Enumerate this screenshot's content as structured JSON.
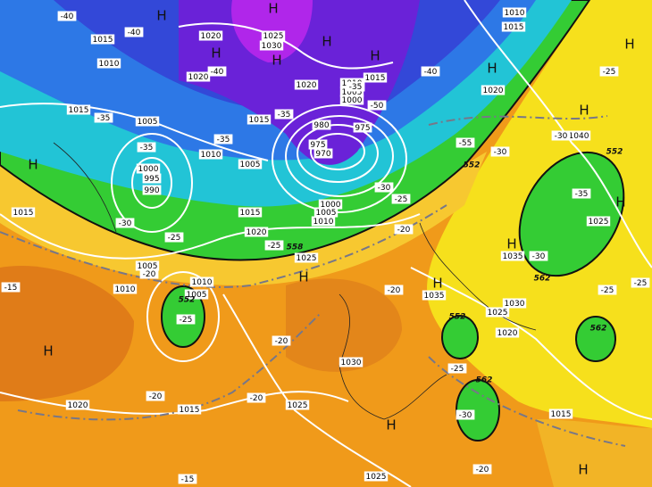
{
  "map": {
    "pressure_labels": [
      "1015",
      "1020",
      "1025",
      "1030",
      "1010",
      "1020",
      "1020",
      "1015",
      "1010",
      "1005",
      "1000",
      "1015",
      "1005",
      "1015",
      "1010",
      "1005",
      "1000",
      "995",
      "990",
      "975",
      "980",
      "975",
      "970",
      "1000",
      "1005",
      "1010",
      "1015",
      "1020",
      "1025",
      "1015",
      "1005",
      "1010",
      "1010",
      "1005",
      "1035",
      "1030",
      "1025",
      "1020",
      "1030",
      "1025",
      "1020",
      "1015",
      "1015",
      "1025",
      "1040",
      "1035",
      "1025",
      "1020",
      "1010",
      "1015"
    ],
    "temperature_labels": [
      "-40",
      "-40",
      "-40",
      "-40",
      "-35",
      "-35",
      "-35",
      "-30",
      "-25",
      "-30",
      "-30",
      "-25",
      "-35",
      "-30",
      "-25",
      "-20",
      "-25",
      "-30",
      "-20",
      "-25",
      "-20",
      "-20",
      "-20",
      "-20",
      "-15",
      "-15",
      "-20",
      "-25",
      "-30",
      "-25",
      "-25",
      "-55",
      "-35",
      "-50",
      "-35"
    ],
    "height_labels": [
      "552",
      "558",
      "552",
      "552",
      "562",
      "562",
      "562",
      "552"
    ],
    "high_markers": [
      "H",
      "H",
      "H",
      "H",
      "H",
      "H",
      "H",
      "H",
      "H",
      "H",
      "H",
      "H",
      "H",
      "H",
      "H",
      "H",
      "H"
    ]
  }
}
